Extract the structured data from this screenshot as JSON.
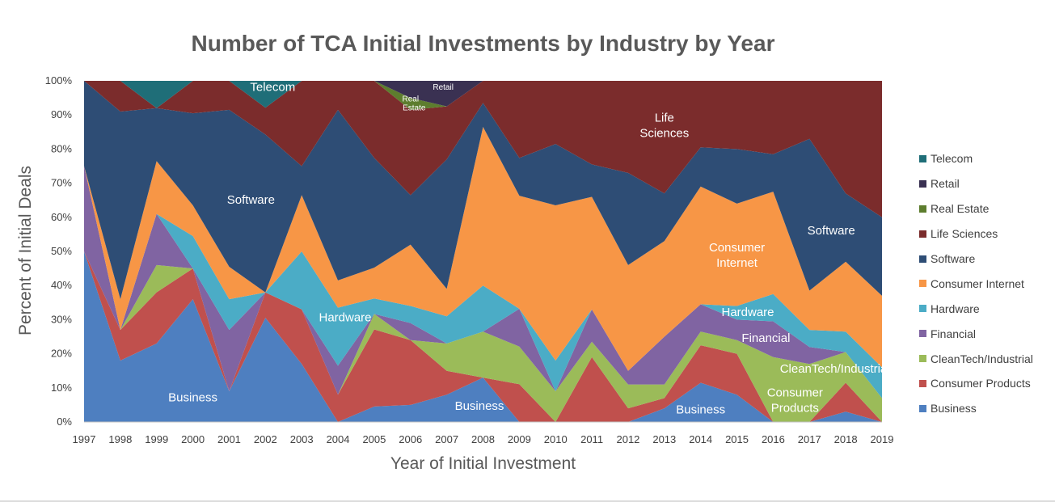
{
  "chart_data": {
    "type": "area",
    "stacked": true,
    "normalized": true,
    "title": "Number of TCA Initial Investments by Industry by Year",
    "xlabel": "Year of Initial Investment",
    "ylabel": "Percent of Initial Deals",
    "ylim": [
      0,
      100
    ],
    "y_ticks": [
      "0%",
      "10%",
      "20%",
      "30%",
      "40%",
      "50%",
      "60%",
      "70%",
      "80%",
      "90%",
      "100%"
    ],
    "x": [
      "1997",
      "1998",
      "1999",
      "2000",
      "2001",
      "2002",
      "2003",
      "2004",
      "2005",
      "2006",
      "2007",
      "2008",
      "2009",
      "2010",
      "2011",
      "2012",
      "2013",
      "2014",
      "2015",
      "2016",
      "2017",
      "2018",
      "2019"
    ],
    "legend_position": "right",
    "grid": false,
    "series": [
      {
        "name": "Business",
        "color": "#4E7FC0",
        "values": [
          50,
          18,
          23,
          36,
          9,
          33,
          17,
          0,
          4.5,
          5,
          8,
          13,
          0,
          0,
          0,
          0,
          4,
          11.5,
          8,
          0,
          0,
          3,
          0
        ]
      },
      {
        "name": "Consumer Products",
        "color": "#C0504D",
        "values": [
          0,
          9,
          15,
          9,
          0,
          8,
          16,
          8,
          22.5,
          19,
          7,
          0,
          11,
          0,
          19,
          4,
          3,
          11,
          12,
          0,
          0,
          8.5,
          0
        ]
      },
      {
        "name": "CleanTech/Industrial",
        "color": "#9BBB59",
        "values": [
          0,
          0,
          8,
          0,
          0,
          0,
          0,
          0,
          4.5,
          0,
          8,
          13.5,
          11,
          9,
          4.5,
          7,
          4,
          4,
          4,
          19,
          17,
          9,
          7
        ]
      },
      {
        "name": "Financial",
        "color": "#8064A2",
        "values": [
          25,
          0,
          15,
          0,
          18,
          0,
          0,
          8.5,
          0,
          5,
          0,
          0,
          11,
          0,
          9.5,
          4,
          14,
          8,
          6,
          10.5,
          5,
          0,
          0
        ]
      },
      {
        "name": "Hardware",
        "color": "#4BACC6",
        "values": [
          0,
          0,
          0,
          9.5,
          9,
          0,
          17,
          17,
          4.5,
          5,
          8,
          13.5,
          0,
          9,
          0,
          0,
          0,
          0,
          4,
          8,
          5,
          6,
          9
        ]
      },
      {
        "name": "Consumer Internet",
        "color": "#F79646",
        "values": [
          0,
          9,
          15.5,
          9,
          9.5,
          0,
          16.5,
          8,
          9,
          18,
          8,
          46.5,
          33,
          45.5,
          33,
          31,
          28,
          34.5,
          30,
          30,
          11.5,
          20.5,
          21
        ]
      },
      {
        "name": "Software",
        "color": "#2E4D75",
        "values": [
          25,
          55,
          15.5,
          27,
          46,
          50,
          8.5,
          50,
          32,
          14.5,
          38,
          7,
          11,
          18,
          9.5,
          27,
          14,
          11.5,
          16,
          11,
          44.5,
          20,
          23
        ]
      },
      {
        "name": "Life Sciences",
        "color": "#7B2C2C",
        "values": [
          0,
          9,
          0,
          9.5,
          8.5,
          8.5,
          25,
          8.5,
          22.5,
          25,
          15.5,
          6.5,
          22.5,
          18.5,
          24.5,
          27,
          33,
          19.5,
          20,
          21.5,
          17,
          33,
          40
        ]
      },
      {
        "name": "Real Estate",
        "color": "#5D7D2E",
        "values": [
          0,
          0,
          0,
          0,
          0,
          0,
          0,
          0,
          0,
          3.5,
          0,
          0,
          0,
          0,
          0,
          0,
          0,
          0,
          0,
          0,
          0,
          0,
          0
        ]
      },
      {
        "name": "Retail",
        "color": "#3A3152",
        "values": [
          0,
          0,
          0,
          0,
          0,
          0,
          0,
          0,
          0,
          5,
          7.5,
          0,
          0,
          0,
          0,
          0,
          0,
          0,
          0,
          0,
          0,
          0,
          0
        ]
      },
      {
        "name": "Telecom",
        "color": "#1F6E78",
        "values": [
          0,
          0,
          8,
          0,
          0,
          8.5,
          0,
          0,
          0,
          0,
          0,
          0,
          0,
          0,
          0,
          0,
          0,
          0,
          0,
          0,
          0,
          0,
          0
        ]
      }
    ],
    "legend_order": [
      "Telecom",
      "Retail",
      "Real Estate",
      "Life Sciences",
      "Software",
      "Consumer Internet",
      "Hardware",
      "Financial",
      "CleanTech/Industrial",
      "Consumer Products",
      "Business"
    ],
    "annotations": [
      {
        "text": "Telecom",
        "x": 2002.2,
        "y": 97
      },
      {
        "text": "Retail",
        "x": 2006.9,
        "y": 97.4,
        "size": "small"
      },
      {
        "text": "Real",
        "x": 2006.0,
        "y": 94,
        "size": "small"
      },
      {
        "text": "Estate",
        "x": 2006.1,
        "y": 91.3,
        "size": "small"
      },
      {
        "text": "Life",
        "x": 2013.0,
        "y": 88
      },
      {
        "text": "Sciences",
        "x": 2013.0,
        "y": 83.5
      },
      {
        "text": "Software",
        "x": 2001.6,
        "y": 64
      },
      {
        "text": "Software",
        "x": 2017.6,
        "y": 55
      },
      {
        "text": "Consumer",
        "x": 2015.0,
        "y": 50
      },
      {
        "text": "Internet",
        "x": 2015.0,
        "y": 45.5
      },
      {
        "text": "Hardware",
        "x": 2004.2,
        "y": 29.5
      },
      {
        "text": "Hardware",
        "x": 2015.3,
        "y": 31
      },
      {
        "text": "Financial",
        "x": 2015.8,
        "y": 23.5
      },
      {
        "text": "CleanTech/Industrial",
        "x": 2017.7,
        "y": 14.5
      },
      {
        "text": "Consumer",
        "x": 2016.6,
        "y": 7.5
      },
      {
        "text": "Products",
        "x": 2016.6,
        "y": 3
      },
      {
        "text": "Business",
        "x": 2000.0,
        "y": 6
      },
      {
        "text": "Business",
        "x": 2007.9,
        "y": 3.5
      },
      {
        "text": "Business",
        "x": 2014.0,
        "y": 2.5
      }
    ]
  }
}
